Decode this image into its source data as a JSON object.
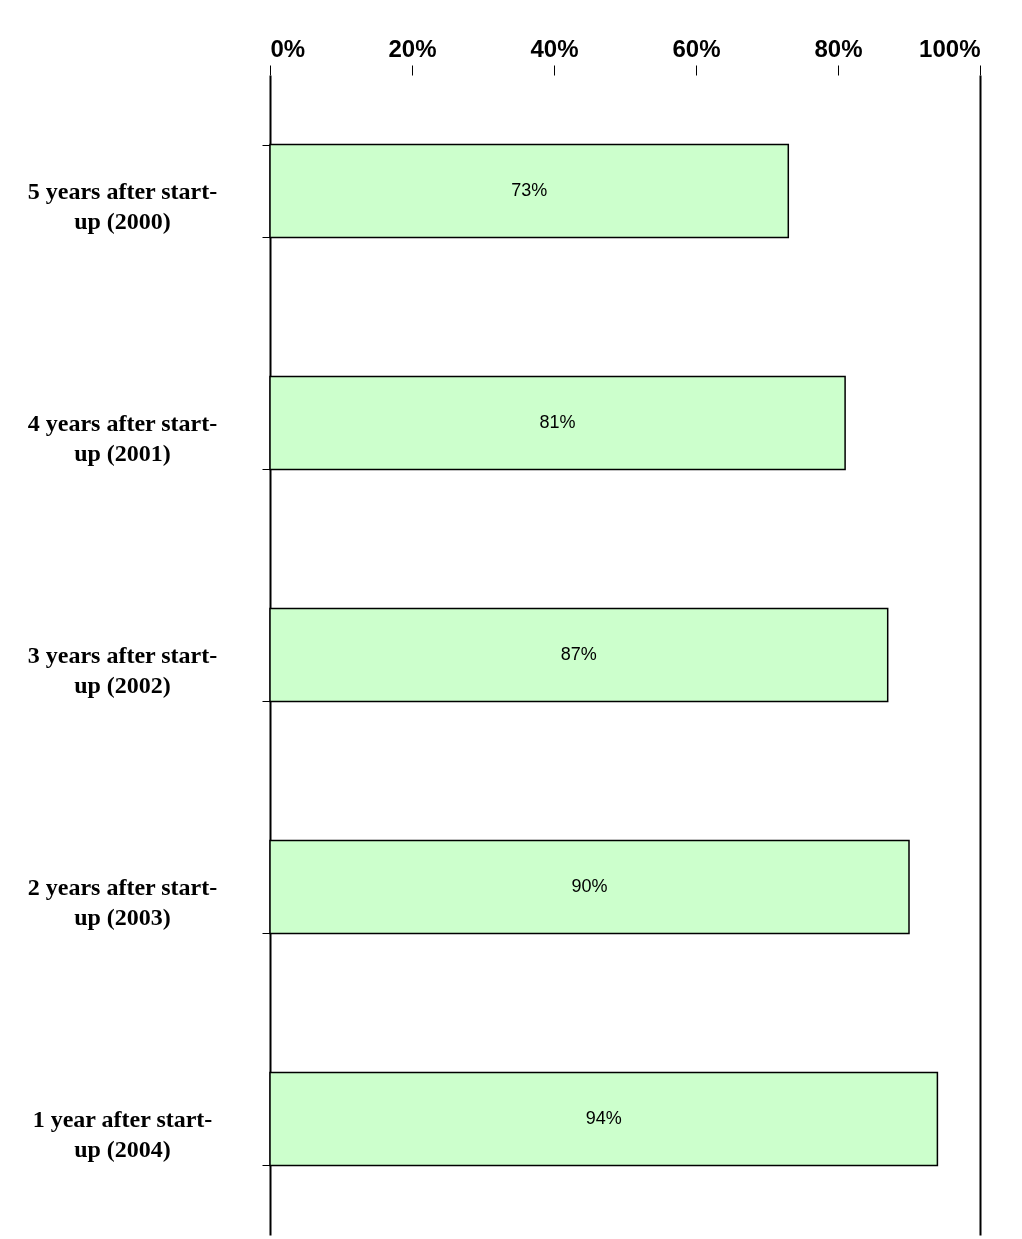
{
  "chart_data": {
    "type": "bar",
    "orientation": "horizontal",
    "categories": [
      "5 years after start-up (2000)",
      "4 years after start-up (2001)",
      "3 years after start-up (2002)",
      "2 years after start-up (2003)",
      "1 year after start-up (2004)"
    ],
    "values": [
      73,
      81,
      87,
      90,
      94
    ],
    "value_labels": [
      "73%",
      "81%",
      "87%",
      "90%",
      "94%"
    ],
    "color": "#ccffcc",
    "xlim": [
      0,
      100
    ],
    "xticks": [
      {
        "value": 0,
        "label": "0%"
      },
      {
        "value": 20,
        "label": "20%"
      },
      {
        "value": 40,
        "label": "40%"
      },
      {
        "value": 60,
        "label": "60%"
      },
      {
        "value": 80,
        "label": "80%"
      },
      {
        "value": 100,
        "label": "100%"
      }
    ],
    "grid": false
  }
}
